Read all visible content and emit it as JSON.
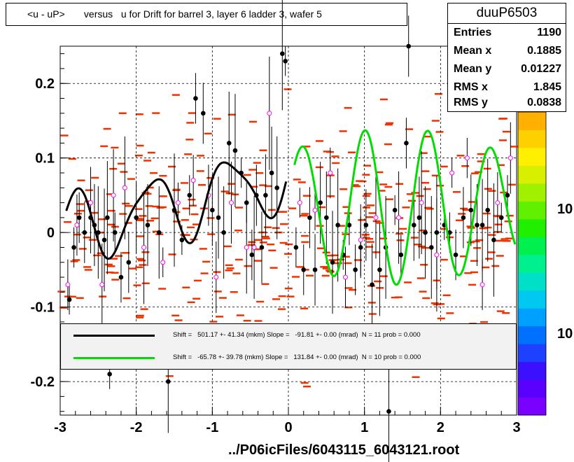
{
  "title": "<u - uP>       versus   u for Drift for barrel 3, layer 6 ladder 3, wafer 5",
  "footer": "../P06icFiles/6043115_6043121.root",
  "stats": {
    "name": "duuP6503",
    "rows": [
      {
        "label": "Entries",
        "value": "1190"
      },
      {
        "label": "Mean x",
        "value": "0.1885"
      },
      {
        "label": "Mean y",
        "value": "0.01227"
      },
      {
        "label": "RMS x",
        "value": "1.845"
      },
      {
        "label": "RMS y",
        "value": "0.0838"
      }
    ]
  },
  "palette": {
    "labels": [
      "10",
      "10"
    ]
  },
  "legend": {
    "entries": [
      {
        "color": "#000000",
        "text": "Shift =   501.17 +- 41.34 (mkm) Slope =   -91.81 +- 0.00 (mrad)  N = 11 prob = 0.000"
      },
      {
        "color": "#00dd00",
        "text": "Shift =   -65.78 +- 39.78 (mkm) Slope =   131.84 +- 0.00 (mrad)  N = 10 prob = 0.000"
      }
    ]
  },
  "chart_data": {
    "type": "scatter",
    "title": "<u - uP>       versus   u for Drift for barrel 3, layer 6 ladder 3, wafer 5",
    "xlabel": "",
    "ylabel": "",
    "xlim": [
      -3,
      3
    ],
    "ylim": [
      -0.245,
      0.25
    ],
    "x_ticks": [
      "-3",
      "-2",
      "-1",
      "0",
      "1",
      "2",
      "3"
    ],
    "y_ticks": [
      "-0.2",
      "-0.1",
      "0",
      "0.1",
      "0.2"
    ],
    "grid": true,
    "colors": {
      "histogram": "#ee3300",
      "profile": "#000000",
      "profile_open": "#ff00ff",
      "fit_left": "#000000",
      "fit_right": "#00dd00"
    },
    "series": [
      {
        "marker": "filled-circle",
        "points": [
          [
            -2.88,
            -0.09
          ],
          [
            -2.82,
            -0.02
          ],
          [
            -2.75,
            0.02
          ],
          [
            -2.68,
            0.0
          ],
          [
            -2.6,
            0.02
          ],
          [
            -2.55,
            0.01
          ],
          [
            -2.5,
            0.0
          ],
          [
            -2.42,
            -0.01
          ],
          [
            -2.38,
            0.02
          ],
          [
            -2.35,
            -0.19
          ],
          [
            -2.28,
            0.0
          ],
          [
            -2.2,
            -0.06
          ],
          [
            -2.1,
            -0.04
          ],
          [
            -2.0,
            0.02
          ],
          [
            -1.85,
            0.01
          ],
          [
            -1.7,
            0.0
          ],
          [
            -1.58,
            -0.2
          ],
          [
            -1.5,
            0.03
          ],
          [
            -1.4,
            -0.01
          ],
          [
            -1.3,
            0.05
          ],
          [
            -1.22,
            0.18
          ],
          [
            -1.12,
            0.16
          ],
          [
            -1.0,
            0.03
          ],
          [
            -0.92,
            0.02
          ],
          [
            -0.85,
            0.0
          ],
          [
            -0.78,
            0.12
          ],
          [
            -0.7,
            0.11
          ],
          [
            -0.62,
            0.08
          ],
          [
            -0.55,
            0.04
          ],
          [
            -0.48,
            -0.03
          ],
          [
            -0.42,
            0.05
          ],
          [
            -0.35,
            -0.02
          ],
          [
            -0.3,
            0.05
          ],
          [
            -0.22,
            0.08
          ],
          [
            -0.15,
            0.06
          ],
          [
            -0.08,
            0.24
          ],
          [
            -0.04,
            0.23
          ],
          [
            0.1,
            -0.02
          ],
          [
            0.2,
            -0.05
          ],
          [
            0.28,
            0.02
          ],
          [
            0.35,
            -0.05
          ],
          [
            0.42,
            0.04
          ],
          [
            0.5,
            0.02
          ],
          [
            0.58,
            -0.04
          ],
          [
            0.65,
            0.01
          ],
          [
            0.72,
            -0.03
          ],
          [
            0.8,
            0.01
          ],
          [
            0.88,
            -0.05
          ],
          [
            0.95,
            -0.02
          ],
          [
            1.02,
            0.01
          ],
          [
            1.1,
            -0.07
          ],
          [
            1.2,
            -0.05
          ],
          [
            1.28,
            -0.02
          ],
          [
            1.32,
            -0.24
          ],
          [
            1.4,
            0.03
          ],
          [
            1.48,
            -0.03
          ],
          [
            1.55,
            0.12
          ],
          [
            1.58,
            0.25
          ],
          [
            1.65,
            0.01
          ],
          [
            1.72,
            0.02
          ],
          [
            1.8,
            0.0
          ],
          [
            1.88,
            -0.02
          ],
          [
            1.95,
            0.0
          ],
          [
            2.05,
            0.01
          ],
          [
            2.12,
            0.0
          ],
          [
            2.2,
            -0.03
          ],
          [
            2.3,
            0.02
          ],
          [
            2.4,
            0.03
          ],
          [
            2.48,
            0.01
          ],
          [
            2.55,
            0.01
          ],
          [
            2.62,
            0.03
          ],
          [
            2.7,
            -0.01
          ],
          [
            2.8,
            0.02
          ],
          [
            2.88,
            0.05
          ]
        ]
      },
      {
        "marker": "open-circle",
        "points": [
          [
            -2.9,
            -0.07
          ],
          [
            -2.78,
            0.01
          ],
          [
            -2.6,
            0.04
          ],
          [
            -2.45,
            -0.07
          ],
          [
            -2.3,
            0.05
          ],
          [
            -2.15,
            0.06
          ],
          [
            -1.9,
            -0.02
          ],
          [
            -1.65,
            -0.04
          ],
          [
            -1.45,
            0.04
          ],
          [
            -1.25,
            0.07
          ],
          [
            -1.05,
            0.05
          ],
          [
            -0.95,
            -0.06
          ],
          [
            -0.75,
            0.04
          ],
          [
            -0.55,
            -0.02
          ],
          [
            -0.45,
            -0.02
          ],
          [
            -0.25,
            0.16
          ],
          [
            0.15,
            0.04
          ],
          [
            0.35,
            0.03
          ],
          [
            0.55,
            0.08
          ],
          [
            0.75,
            -0.06
          ],
          [
            0.95,
            -0.01
          ],
          [
            1.15,
            0.02
          ],
          [
            1.45,
            0.02
          ],
          [
            1.75,
            0.04
          ],
          [
            1.95,
            -0.03
          ],
          [
            2.15,
            0.08
          ],
          [
            2.35,
            0.1
          ],
          [
            2.55,
            -0.07
          ],
          [
            2.75,
            0.04
          ],
          [
            2.92,
            0.1
          ]
        ]
      }
    ],
    "fits": [
      {
        "color": "#000000",
        "x_range": [
          -2.92,
          -0.03
        ]
      },
      {
        "color": "#00dd00",
        "x_range": [
          0.08,
          2.98
        ]
      }
    ]
  }
}
